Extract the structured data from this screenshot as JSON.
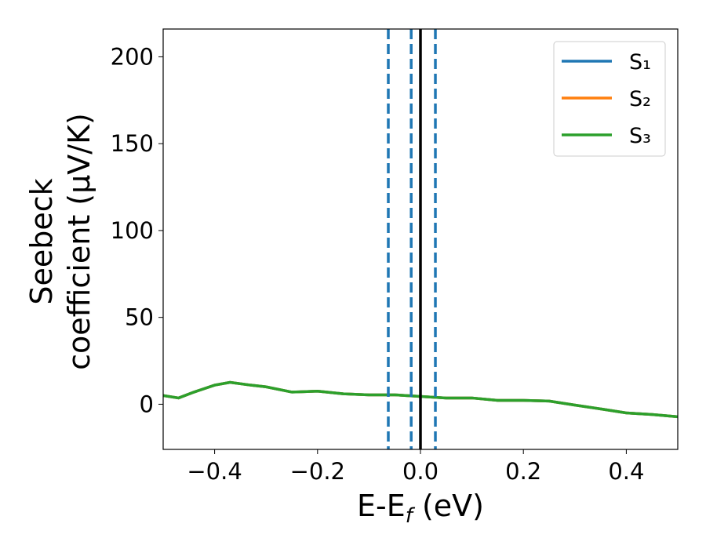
{
  "chart_data": {
    "type": "line",
    "x_label": [
      "E-E",
      "f",
      " (eV)"
    ],
    "y_label": [
      "Seebeck",
      "coefficient  (μV/K)"
    ],
    "x": [
      -0.5,
      -0.47,
      -0.44,
      -0.4,
      -0.37,
      -0.33,
      -0.3,
      -0.25,
      -0.2,
      -0.15,
      -0.1,
      -0.05,
      0,
      0.05,
      0.1,
      0.15,
      0.2,
      0.25,
      0.3,
      0.35,
      0.4,
      0.45,
      0.5
    ],
    "series": [
      {
        "name": "S₁",
        "color": "#1f77b4",
        "values": [
          5,
          3.6,
          7,
          11,
          12.6,
          11,
          10,
          7,
          7.5,
          6,
          5.4,
          5.4,
          4.5,
          3.6,
          3.6,
          2.2,
          2.2,
          1.8,
          -0.5,
          -2.7,
          -5,
          -5.9,
          -7.2
        ]
      },
      {
        "name": "S₂",
        "color": "#ff7f0e",
        "values": [
          5,
          3.6,
          7,
          11,
          12.6,
          11,
          10,
          7,
          7.5,
          6,
          5.4,
          5.4,
          4.5,
          3.6,
          3.6,
          2.2,
          2.2,
          1.8,
          -0.5,
          -2.7,
          -5,
          -5.9,
          -7.2
        ]
      },
      {
        "name": "S₃",
        "color": "#2ca02c",
        "values": [
          5,
          3.6,
          7,
          11,
          12.6,
          11,
          10,
          7,
          7.5,
          6,
          5.4,
          5.4,
          4.5,
          3.6,
          3.6,
          2.2,
          2.2,
          1.8,
          -0.5,
          -2.7,
          -5,
          -5.9,
          -7.2
        ]
      }
    ],
    "vlines": [
      {
        "x": -0.0625,
        "color": "#1f77b4",
        "style": "dashed"
      },
      {
        "x": -0.018,
        "color": "#1f77b4",
        "style": "dashed"
      },
      {
        "x": 0.029,
        "color": "#1f77b4",
        "style": "dashed"
      },
      {
        "x": 0,
        "color": "#000000",
        "style": "solid"
      }
    ],
    "xlim": [
      -0.5,
      0.5
    ],
    "ylim": [
      -26,
      216
    ],
    "xticks": [
      {
        "value": -0.4,
        "label": "−0.4"
      },
      {
        "value": -0.2,
        "label": "−0.2"
      },
      {
        "value": 0,
        "label": "0.0"
      },
      0.2,
      0.4
    ],
    "yticks": [
      0,
      50,
      100,
      150,
      200
    ],
    "legend": "upper right",
    "grid": false
  }
}
